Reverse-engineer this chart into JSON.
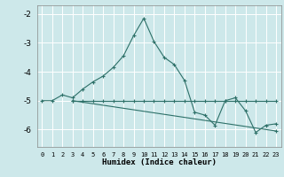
{
  "xlabel": "Humidex (Indice chaleur)",
  "xlim": [
    -0.5,
    23.5
  ],
  "ylim": [
    -6.6,
    -1.7
  ],
  "yticks": [
    -6,
    -5,
    -4,
    -3,
    -2
  ],
  "xticks": [
    0,
    1,
    2,
    3,
    4,
    5,
    6,
    7,
    8,
    9,
    10,
    11,
    12,
    13,
    14,
    15,
    16,
    17,
    18,
    19,
    20,
    21,
    22,
    23
  ],
  "bg_color": "#cde8ea",
  "grid_color": "#ffffff",
  "line_color": "#2d7068",
  "line1_x": [
    0,
    1,
    2,
    3,
    4,
    5,
    6,
    7,
    8,
    9,
    10,
    11,
    12,
    13,
    14,
    15,
    16,
    17,
    18,
    19,
    20,
    21,
    22,
    23
  ],
  "line1_y": [
    -5.0,
    -5.0,
    -4.8,
    -4.9,
    -4.6,
    -4.35,
    -4.15,
    -3.85,
    -3.45,
    -2.75,
    -2.15,
    -2.95,
    -3.5,
    -3.75,
    -4.3,
    -5.4,
    -5.5,
    -5.85,
    -5.0,
    -4.9,
    -5.35,
    -6.1,
    -5.85,
    -5.8
  ],
  "line2_x": [
    3,
    4,
    5,
    6,
    7,
    8,
    9,
    10,
    11,
    12,
    13,
    14,
    15,
    16,
    17,
    18,
    19,
    20,
    21,
    22,
    23
  ],
  "line2_y": [
    -5.0,
    -5.0,
    -5.0,
    -5.0,
    -5.0,
    -5.0,
    -5.0,
    -5.0,
    -5.0,
    -5.0,
    -5.0,
    -5.0,
    -5.0,
    -5.0,
    -5.0,
    -5.0,
    -5.0,
    -5.0,
    -5.0,
    -5.0,
    -5.0
  ],
  "line3_x": [
    3,
    23
  ],
  "line3_y": [
    -5.0,
    -6.05
  ]
}
